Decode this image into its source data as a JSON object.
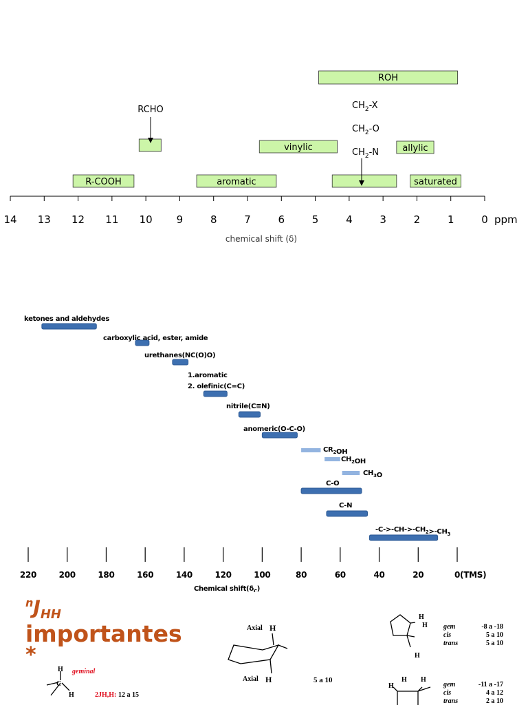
{
  "chart_data": [
    {
      "type": "range-bar",
      "title": "",
      "xlabel": "chemical shift (δ)",
      "unit": "ppm",
      "xlim": [
        14,
        0
      ],
      "reversed": true,
      "ticks": [
        14,
        13,
        12,
        11,
        10,
        9,
        8,
        7,
        6,
        5,
        4,
        3,
        2,
        1,
        0
      ],
      "box_color": "#ccf5a8",
      "ranges": [
        {
          "label": "ROH",
          "from": 4.9,
          "to": 0.8,
          "row": 0
        },
        {
          "label": "",
          "from": 10.2,
          "to": 9.55,
          "row": 2,
          "annotation": "RCHO"
        },
        {
          "label": "vinylic",
          "from": 6.65,
          "to": 4.35,
          "row": 2
        },
        {
          "label": "allylic",
          "from": 2.6,
          "to": 1.5,
          "row": 2
        },
        {
          "label": "R-COOH",
          "from": 12.15,
          "to": 10.35,
          "row": 3
        },
        {
          "label": "aromatic",
          "from": 8.5,
          "to": 6.15,
          "row": 3
        },
        {
          "label": "",
          "from": 4.5,
          "to": 2.6,
          "row": 3,
          "annotation": "CH2-N"
        },
        {
          "label": "saturated",
          "from": 2.2,
          "to": 0.7,
          "row": 3
        }
      ],
      "annotations": [
        "RCHO",
        "CH2-X",
        "CH2-O",
        "CH2-N"
      ]
    },
    {
      "type": "range-bar",
      "title": "",
      "xlabel": "Chemical shift(δC)",
      "xlim": [
        220,
        0
      ],
      "reversed": true,
      "ticks": [
        "220",
        "200",
        "180",
        "160",
        "140",
        "120",
        "100",
        "80",
        "60",
        "40",
        "20",
        "0(TMS)"
      ],
      "colors": {
        "dark": "#3d6fb0",
        "light": "#93b4e0"
      },
      "ranges": [
        {
          "label": "ketones and aldehydes",
          "from": 213,
          "to": 185,
          "style": "dark"
        },
        {
          "label": "carboxylic acid, ester, amide",
          "from": 165,
          "to": 158,
          "style": "dark"
        },
        {
          "label": "urethanes(NC(O)O)",
          "from": 146,
          "to": 138,
          "style": "dark"
        },
        {
          "label": "1.aromatic / 2. olefinic(C=C)",
          "from": 130,
          "to": 118,
          "style": "dark"
        },
        {
          "label": "nitrile(C≡N)",
          "from": 112,
          "to": 101,
          "style": "dark"
        },
        {
          "label": "anomeric(O-C-O)",
          "from": 100,
          "to": 82,
          "style": "dark"
        },
        {
          "label": "CR2OH",
          "from": 80,
          "to": 70,
          "style": "light"
        },
        {
          "label": "CH2OH",
          "from": 68,
          "to": 60,
          "style": "light"
        },
        {
          "label": "CH3O",
          "from": 59,
          "to": 50,
          "style": "light"
        },
        {
          "label": "C-O",
          "from": 80,
          "to": 49,
          "style": "dark"
        },
        {
          "label": "C-N",
          "from": 67,
          "to": 46,
          "style": "dark"
        },
        {
          "label": "-C->-CH->-CH2>-CH3",
          "from": 45,
          "to": 10,
          "style": "dark"
        }
      ]
    }
  ],
  "section": {
    "title_n": "n",
    "title_j": "J",
    "title_hh": "HH",
    "title_word": "importantes",
    "title_star": "*",
    "accent": "#c0531a"
  },
  "couplings": {
    "geminal": "geminal",
    "gem_label": "2JH,H:",
    "gem_value": "12 a 15",
    "axial": "Axial",
    "h": "H",
    "axial_value": "5 a 10",
    "cyclopentane": [
      {
        "k": "gem",
        "v": "-8 a -18"
      },
      {
        "k": "cis",
        "v": "5 a 10"
      },
      {
        "k": "trans",
        "v": "5 a 10"
      }
    ],
    "cyclobutane": [
      {
        "k": "gem",
        "v": "-11 a -17"
      },
      {
        "k": "cis",
        "v": "4 a 12"
      },
      {
        "k": "trans",
        "v": "2 a 10"
      }
    ]
  }
}
